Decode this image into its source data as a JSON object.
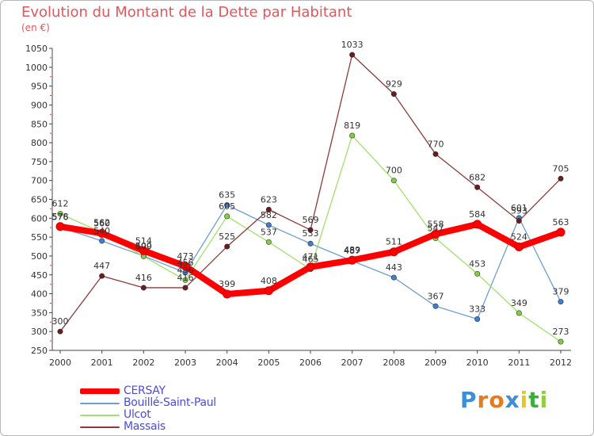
{
  "chart_data": {
    "type": "line",
    "title": "Evolution du Montant de la Dette par Habitant",
    "subtitle": "(en €)",
    "xlabel": "",
    "ylabel": "",
    "categories": [
      "2000",
      "2001",
      "2002",
      "2003",
      "2004",
      "2005",
      "2006",
      "2007",
      "2008",
      "2009",
      "2010",
      "2011",
      "2012"
    ],
    "ylim": [
      250,
      1050
    ],
    "yticks": [
      250,
      300,
      350,
      400,
      450,
      500,
      550,
      600,
      650,
      700,
      750,
      800,
      850,
      900,
      950,
      1000,
      1050
    ],
    "grid": false,
    "legend_position": "bottom-left",
    "series": [
      {
        "name": "CERSAY",
        "color": "#ff0000",
        "marker_color": "#ff0000",
        "values": [
          578,
          560,
          514,
          473,
          399,
          408,
          471,
          489,
          511,
          558,
          584,
          524,
          563
        ]
      },
      {
        "name": "Bouillé-Saint-Paul",
        "color": "#6f9fd0",
        "marker_color": "#3f7fd0",
        "values": [
          576,
          540,
          500,
          456,
          635,
          582,
          533,
          487,
          443,
          367,
          333,
          601,
          379
        ]
      },
      {
        "name": "Ulcot",
        "color": "#a0e06c",
        "marker_color": "#7fd040",
        "values": [
          612,
          562,
          499,
          436,
          605,
          537,
          465,
          819,
          700,
          547,
          453,
          349,
          273
        ]
      },
      {
        "name": "Massais",
        "color": "#8c3a3a",
        "marker_color": "#6b1d1d",
        "values": [
          300,
          447,
          416,
          416,
          525,
          623,
          569,
          1033,
          929,
          770,
          682,
          593,
          705
        ]
      }
    ]
  },
  "logo": {
    "text": "Proxiti",
    "letters": [
      "P",
      "r",
      "o",
      "x",
      "i",
      "t",
      "i"
    ],
    "colors": [
      "#3a8fd8",
      "#e87a1e",
      "#e87a1e",
      "#3a8fd8",
      "#e8c81e",
      "#3ab03a",
      "#8fd03a"
    ]
  }
}
